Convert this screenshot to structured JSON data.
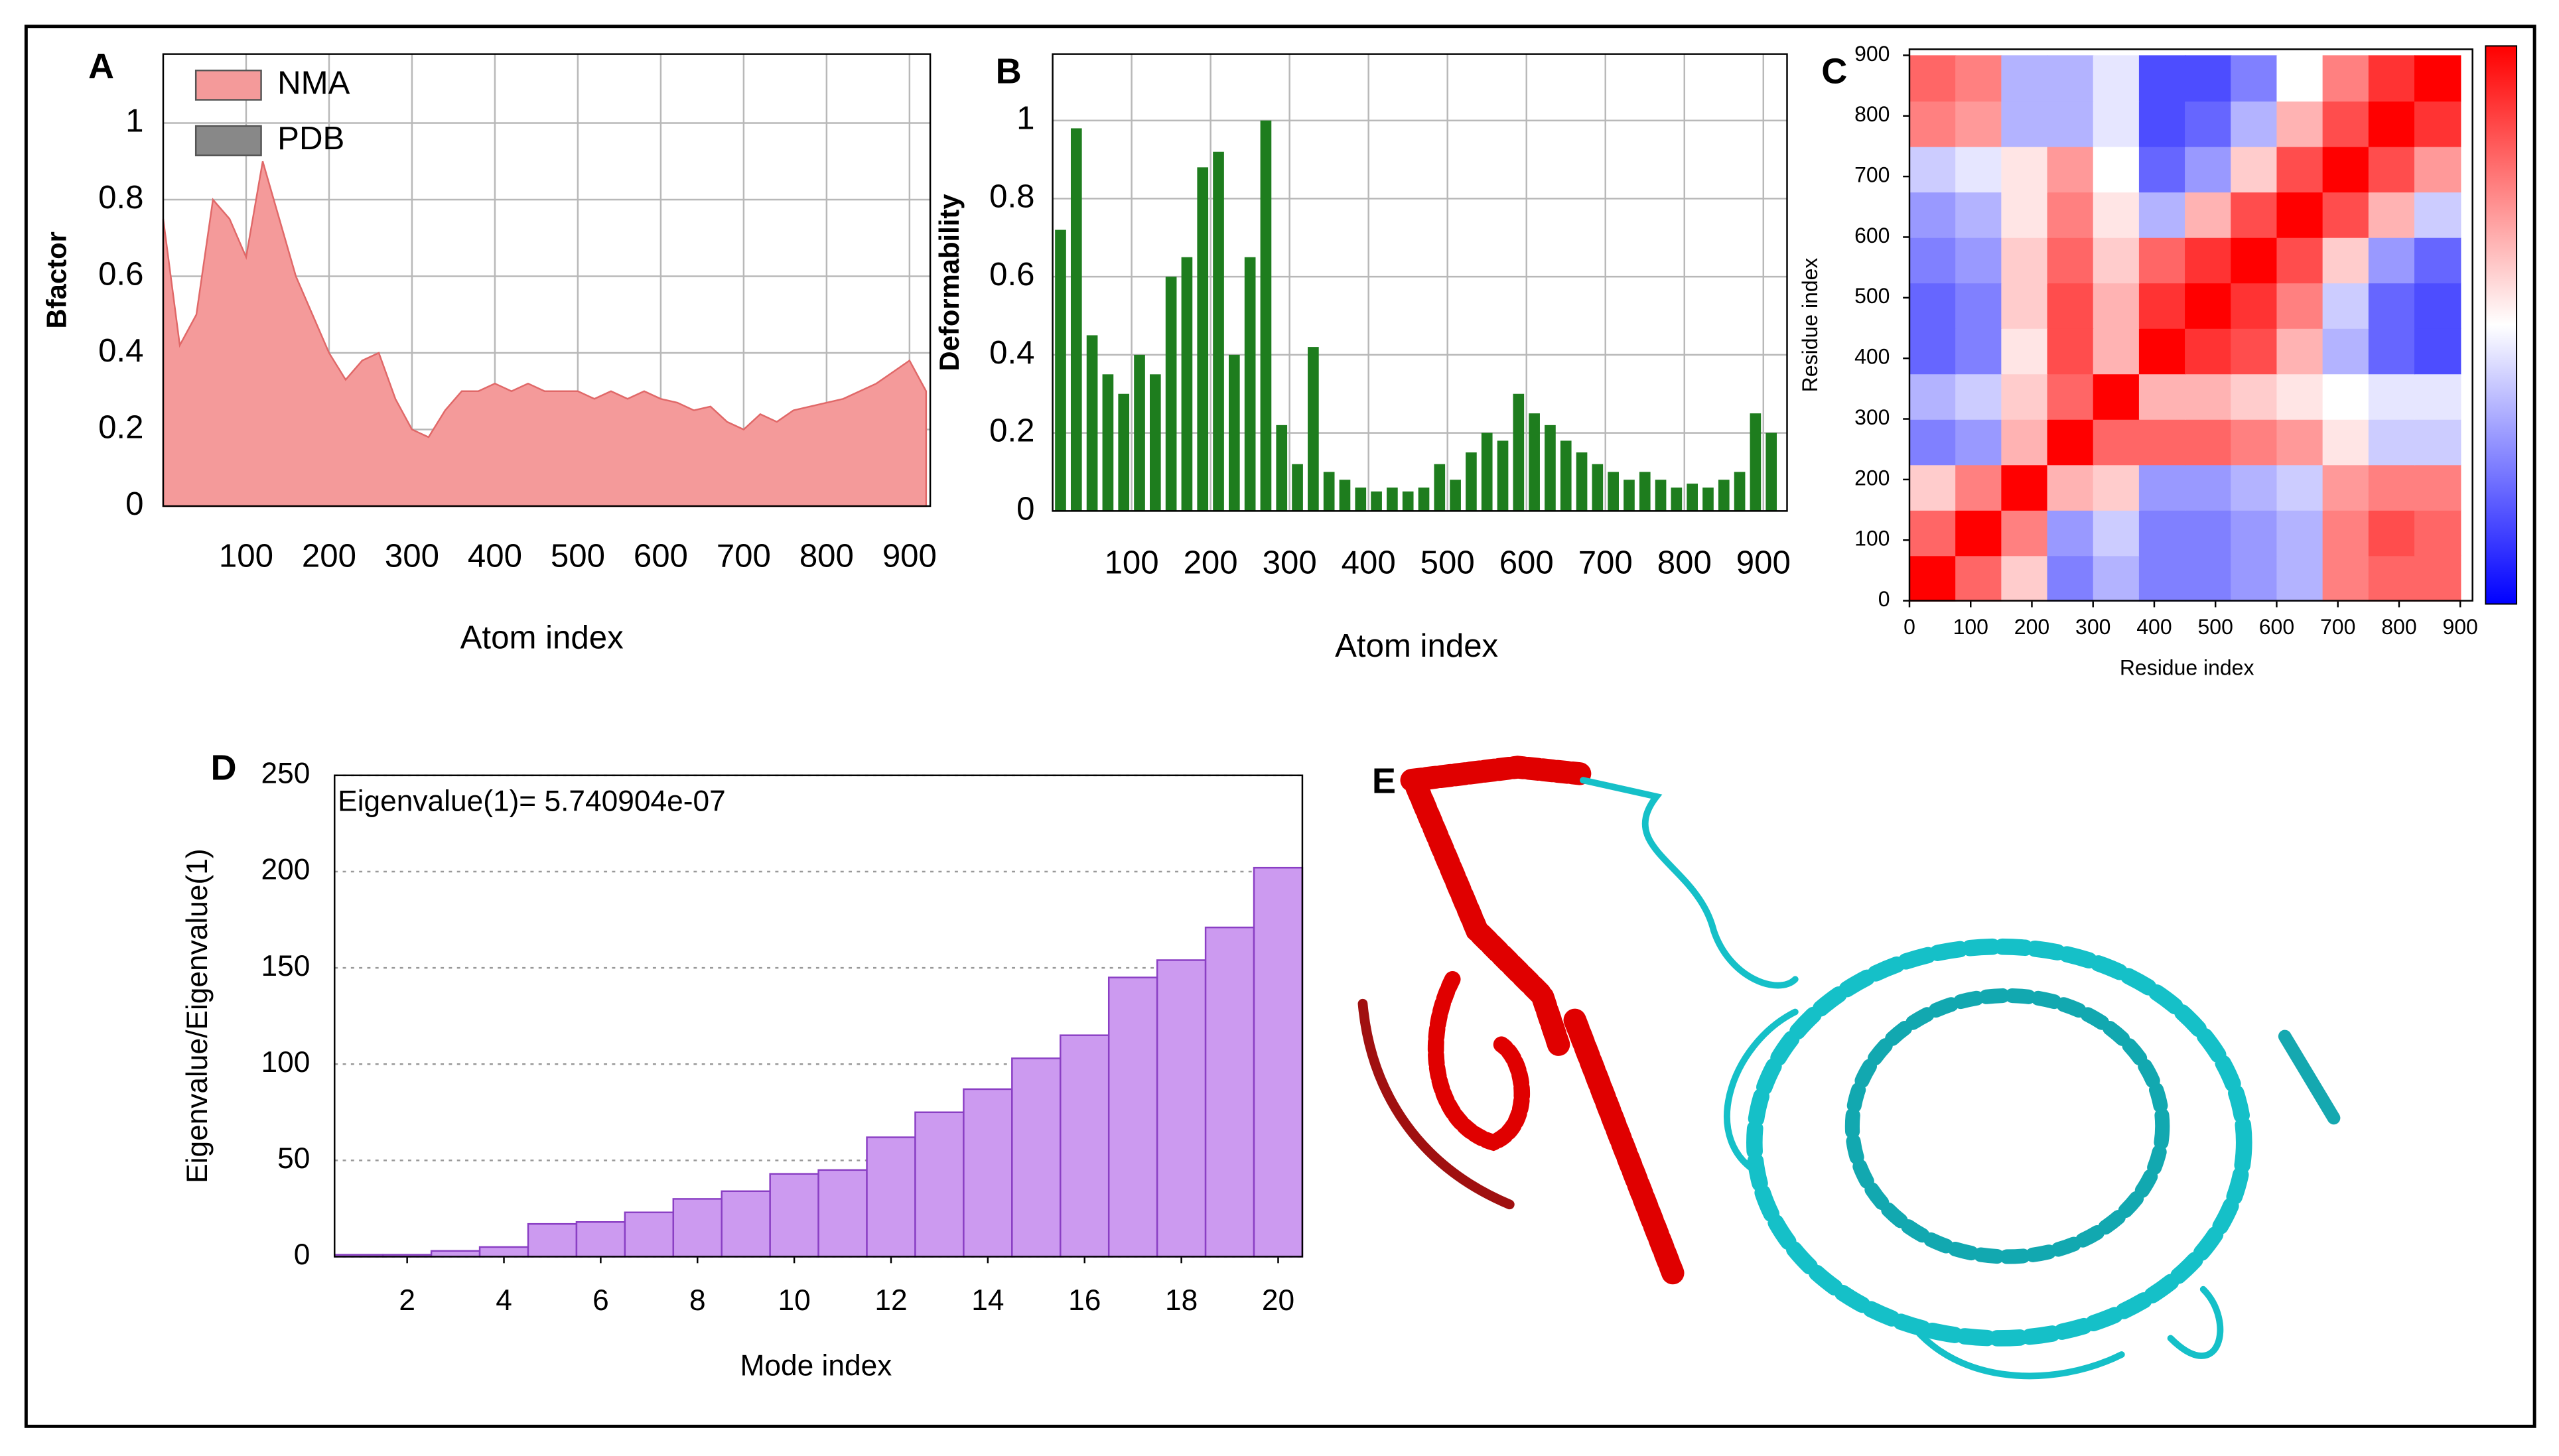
{
  "chart_data": [
    {
      "type": "area",
      "panel_label": "A",
      "xlabel": "Atom index",
      "ylabel": "Bfactor",
      "x": [
        0,
        20,
        40,
        60,
        80,
        100,
        120,
        140,
        160,
        180,
        200,
        220,
        240,
        260,
        280,
        300,
        320,
        340,
        360,
        380,
        400,
        420,
        440,
        460,
        480,
        500,
        520,
        540,
        560,
        580,
        600,
        620,
        640,
        660,
        680,
        700,
        720,
        740,
        760,
        780,
        800,
        820,
        840,
        860,
        880,
        900,
        920
      ],
      "series": [
        {
          "name": "NMA",
          "color": "#f49a9a",
          "values": [
            0.75,
            0.42,
            0.5,
            0.8,
            0.75,
            0.65,
            0.9,
            0.75,
            0.6,
            0.5,
            0.4,
            0.33,
            0.38,
            0.4,
            0.28,
            0.2,
            0.18,
            0.25,
            0.3,
            0.3,
            0.32,
            0.3,
            0.32,
            0.3,
            0.3,
            0.3,
            0.28,
            0.3,
            0.28,
            0.3,
            0.28,
            0.27,
            0.25,
            0.26,
            0.22,
            0.2,
            0.24,
            0.22,
            0.25,
            0.26,
            0.27,
            0.28,
            0.3,
            0.32,
            0.35,
            0.38,
            0.3
          ]
        },
        {
          "name": "PDB",
          "color": "#888888",
          "values": [
            null,
            null,
            null,
            null,
            null,
            null,
            null,
            null,
            null,
            null,
            null,
            null,
            null,
            null,
            null,
            null,
            null,
            null,
            null,
            null,
            null,
            null,
            null,
            null,
            null,
            null,
            null,
            null,
            null,
            null,
            null,
            null,
            null,
            null,
            null,
            null,
            null,
            null,
            null,
            null,
            null,
            null,
            null,
            null,
            null,
            null,
            null
          ]
        }
      ],
      "xlim": [
        0,
        925
      ],
      "xticks": [
        100,
        200,
        300,
        400,
        500,
        600,
        700,
        800,
        900
      ],
      "ylim": [
        0,
        1.18
      ],
      "yticks": [
        0,
        0.2,
        0.4,
        0.6,
        0.8,
        1
      ],
      "grid": "both",
      "legend": "upper left"
    },
    {
      "type": "bar",
      "panel_label": "B",
      "xlabel": "Atom index",
      "ylabel": "Deformability",
      "color": "#1e7d1e",
      "x": [
        10,
        30,
        50,
        70,
        90,
        110,
        130,
        150,
        170,
        190,
        210,
        230,
        250,
        270,
        290,
        310,
        330,
        350,
        370,
        390,
        410,
        430,
        450,
        470,
        490,
        510,
        530,
        550,
        570,
        590,
        610,
        630,
        650,
        670,
        690,
        710,
        730,
        750,
        770,
        790,
        810,
        830,
        850,
        870,
        890,
        910
      ],
      "values": [
        0.72,
        0.98,
        0.45,
        0.35,
        0.3,
        0.4,
        0.35,
        0.6,
        0.65,
        0.88,
        0.92,
        0.4,
        0.65,
        1.0,
        0.22,
        0.12,
        0.42,
        0.1,
        0.08,
        0.06,
        0.05,
        0.06,
        0.05,
        0.06,
        0.12,
        0.08,
        0.15,
        0.2,
        0.18,
        0.3,
        0.25,
        0.22,
        0.18,
        0.15,
        0.12,
        0.1,
        0.08,
        0.1,
        0.08,
        0.06,
        0.07,
        0.06,
        0.08,
        0.1,
        0.25,
        0.2
      ],
      "xlim": [
        0,
        930
      ],
      "xticks": [
        100,
        200,
        300,
        400,
        500,
        600,
        700,
        800,
        900
      ],
      "ylim": [
        0,
        1.17
      ],
      "yticks": [
        0,
        0.2,
        0.4,
        0.6,
        0.8,
        1
      ],
      "grid": "both"
    },
    {
      "type": "heatmap",
      "panel_label": "C",
      "xlabel": "Residue index",
      "ylabel": "Residue index",
      "x": [
        37.5,
        112.5,
        187.5,
        262.5,
        337.5,
        412.5,
        487.5,
        562.5,
        637.5,
        712.5,
        787.5,
        862.5
      ],
      "y": [
        37.5,
        112.5,
        187.5,
        262.5,
        337.5,
        412.5,
        487.5,
        562.5,
        637.5,
        712.5,
        787.5,
        862.5
      ],
      "z": [
        [
          1,
          0.6,
          0.2,
          -0.5,
          -0.3,
          -0.5,
          -0.5,
          -0.4,
          -0.3,
          0.5,
          0.6,
          0.6
        ],
        [
          0.6,
          1,
          0.5,
          -0.4,
          -0.2,
          -0.5,
          -0.5,
          -0.4,
          -0.3,
          0.5,
          0.7,
          0.6
        ],
        [
          0.2,
          0.5,
          1,
          0.3,
          0.2,
          -0.4,
          -0.4,
          -0.3,
          -0.2,
          0.4,
          0.5,
          0.5
        ],
        [
          -0.5,
          -0.4,
          0.3,
          1,
          0.6,
          0.6,
          0.6,
          0.5,
          0.4,
          0.1,
          -0.2,
          -0.2
        ],
        [
          -0.3,
          -0.2,
          0.2,
          0.6,
          1,
          0.3,
          0.3,
          0.2,
          0.1,
          0,
          -0.1,
          -0.1
        ],
        [
          -0.6,
          -0.5,
          0.1,
          0.7,
          0.3,
          1,
          0.8,
          0.7,
          0.3,
          -0.3,
          -0.6,
          -0.7
        ],
        [
          -0.6,
          -0.5,
          0.2,
          0.7,
          0.3,
          0.8,
          1,
          0.8,
          0.5,
          -0.2,
          -0.6,
          -0.7
        ],
        [
          -0.5,
          -0.4,
          0.2,
          0.6,
          0.2,
          0.6,
          0.8,
          1,
          0.7,
          0.2,
          -0.4,
          -0.6
        ],
        [
          -0.4,
          -0.3,
          0.1,
          0.5,
          0.1,
          -0.3,
          0.3,
          0.7,
          1,
          0.7,
          0.3,
          -0.2
        ],
        [
          -0.2,
          -0.1,
          0.1,
          0.4,
          0,
          -0.6,
          -0.4,
          0.2,
          0.7,
          1,
          0.7,
          0.4
        ],
        [
          0.5,
          0.4,
          -0.3,
          -0.3,
          -0.1,
          -0.7,
          -0.6,
          -0.3,
          0.3,
          0.7,
          1,
          0.8
        ],
        [
          0.6,
          0.5,
          -0.3,
          -0.3,
          -0.1,
          -0.7,
          -0.7,
          -0.5,
          0,
          0.5,
          0.8,
          1
        ]
      ],
      "zlim": [
        -1,
        1
      ],
      "colormap": [
        "#0000ff",
        "#ffffff",
        "#ff0000"
      ],
      "xlim": [
        0,
        920
      ],
      "xticks": [
        0,
        100,
        200,
        300,
        400,
        500,
        600,
        700,
        800,
        900
      ],
      "ylim": [
        0,
        910
      ],
      "yticks": [
        0,
        100,
        200,
        300,
        400,
        500,
        600,
        700,
        800,
        900
      ],
      "grid": "none"
    },
    {
      "type": "bar",
      "panel_label": "D",
      "xlabel": "Mode index",
      "ylabel": "Eigenvalue/Eigenvalue(1)",
      "annotation": "Eigenvalue(1)= 5.740904e-07",
      "color": "#cc9af0",
      "edge_color": "#8a3fc4",
      "x": [
        1,
        2,
        3,
        4,
        5,
        6,
        7,
        8,
        9,
        10,
        11,
        12,
        13,
        14,
        15,
        16,
        17,
        18,
        19,
        20
      ],
      "values": [
        1,
        1,
        3,
        5,
        17,
        18,
        23,
        30,
        34,
        43,
        45,
        62,
        75,
        87,
        103,
        115,
        145,
        154,
        171,
        202
      ],
      "xlim": [
        0.5,
        20.5
      ],
      "xticks": [
        2,
        4,
        6,
        8,
        10,
        12,
        14,
        16,
        18,
        20
      ],
      "ylim": [
        0,
        250
      ],
      "yticks": [
        0,
        50,
        100,
        150,
        200,
        250
      ],
      "grid": "y"
    }
  ],
  "panel_e": {
    "panel_label": "E"
  }
}
